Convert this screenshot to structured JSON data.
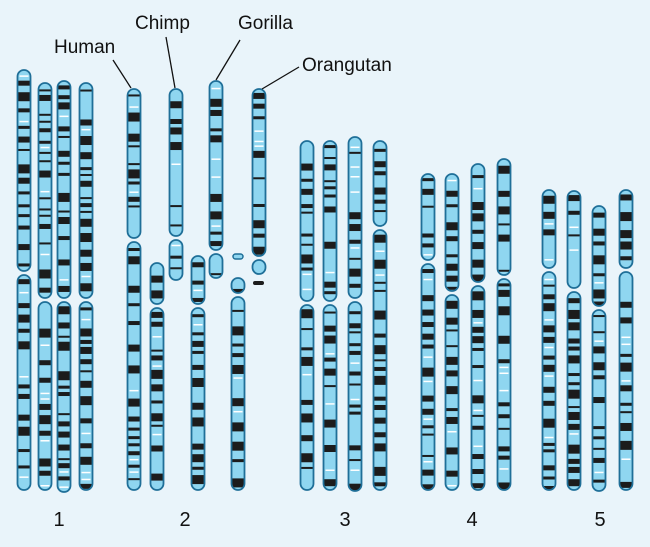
{
  "species": [
    "Human",
    "Chimp",
    "Gorilla",
    "Orangutan"
  ],
  "chromosome_groups": [
    "1",
    "2",
    "3",
    "4",
    "5"
  ],
  "colors": {
    "background": "#e9f4fa",
    "chromosome_fill": "#8fd6f0",
    "chromosome_outline": "#1f6f98",
    "band_dark": "#1c1c1c",
    "band_light": "#ffffff"
  }
}
